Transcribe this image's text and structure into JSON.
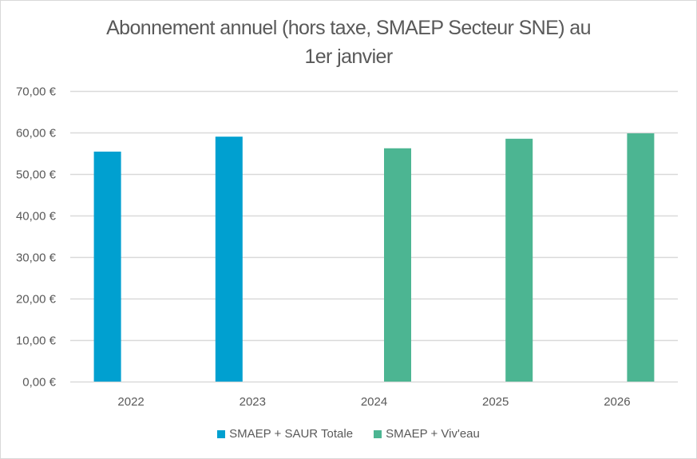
{
  "chart_data": {
    "type": "bar",
    "title": "Abonnement annuel (hors taxe, SMAEP Secteur SNE) au 1er janvier",
    "title_lines": [
      "Abonnement annuel (hors taxe, SMAEP Secteur SNE) au",
      "1er janvier"
    ],
    "xlabel": "",
    "ylabel": "",
    "categories": [
      "2022",
      "2023",
      "2024",
      "2025",
      "2026"
    ],
    "series": [
      {
        "name": "SMAEP + SAUR Totale",
        "color": "#00a0d0",
        "values": [
          55.4,
          59.0,
          null,
          null,
          null
        ]
      },
      {
        "name": "SMAEP + Viv'eau",
        "color": "#4cb592",
        "values": [
          null,
          null,
          56.2,
          58.5,
          59.8
        ]
      }
    ],
    "ylim": [
      0,
      70
    ],
    "yticks": [
      0,
      10,
      20,
      30,
      40,
      50,
      60,
      70
    ],
    "ytick_labels": [
      "0,00 €",
      "10,00 €",
      "20,00 €",
      "30,00 €",
      "40,00 €",
      "50,00 €",
      "60,00 €",
      "70,00 €"
    ],
    "grid": true,
    "legend_position": "bottom",
    "gridline_color": "#d9d9d9",
    "text_color": "#595959"
  }
}
